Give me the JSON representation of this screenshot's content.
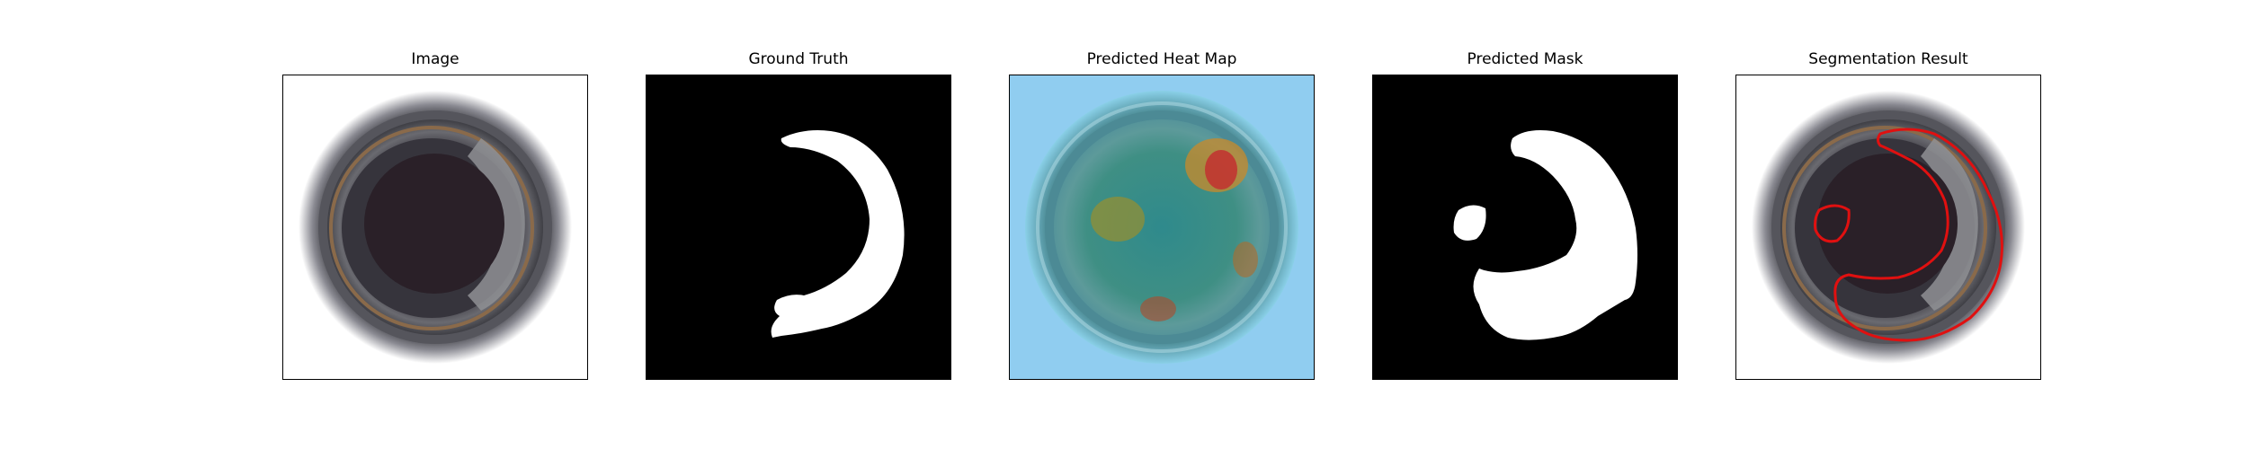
{
  "panels": [
    {
      "title": "Image"
    },
    {
      "title": "Ground Truth"
    },
    {
      "title": "Predicted Heat Map"
    },
    {
      "title": "Predicted Mask"
    },
    {
      "title": "Segmentation Result"
    }
  ],
  "colors": {
    "mask_background": "#000000",
    "mask_foreground": "#ffffff",
    "contour": "#e01010"
  }
}
